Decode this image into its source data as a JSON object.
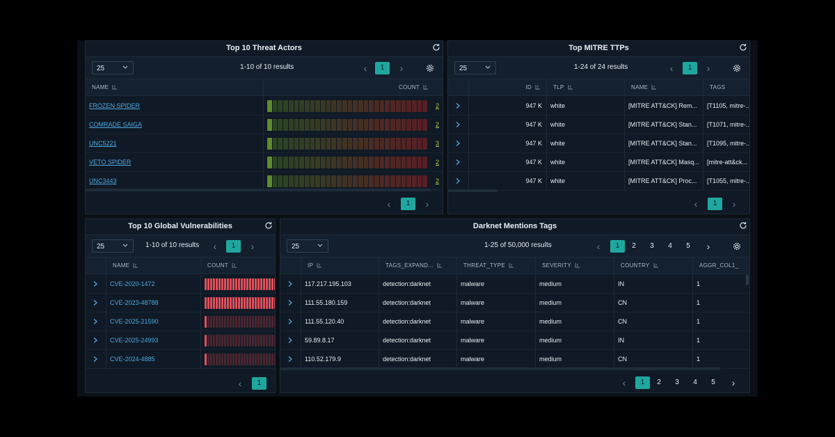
{
  "threat_actors": {
    "title": "Top 10 Threat Actors",
    "page_size": "25",
    "results": "1-10 of 10 results",
    "page": "1",
    "columns": {
      "name": "NAME",
      "count": "COUNT"
    },
    "rows": [
      {
        "name": "FROZEN SPIDER",
        "count": "2"
      },
      {
        "name": "COMRADE SAIGA",
        "count": "2"
      },
      {
        "name": "UNC5221",
        "count": "3"
      },
      {
        "name": "VETO SPIDER",
        "count": "2"
      },
      {
        "name": "UNC3443",
        "count": "2"
      }
    ]
  },
  "mitre": {
    "title": "Top MITRE TTPs",
    "page_size": "25",
    "results": "1-24 of 24 results",
    "page": "1",
    "columns": {
      "id": "ID",
      "tlp": "TLP",
      "name": "NAME",
      "tags": "TAGS"
    },
    "rows": [
      {
        "id": "947 K",
        "tlp": "white",
        "name": "[MITRE ATT&CK] Rem...",
        "tags": "[T1105, mitre-..."
      },
      {
        "id": "947 K",
        "tlp": "white",
        "name": "[MITRE ATT&CK] Stan...",
        "tags": "[T1071, mitre-..."
      },
      {
        "id": "947 K",
        "tlp": "white",
        "name": "[MITRE ATT&CK] Stan...",
        "tags": "[T1095, mitre-..."
      },
      {
        "id": "947 K",
        "tlp": "white",
        "name": "[MITRE ATT&CK] Masq...",
        "tags": "[mitre-att&ck..."
      },
      {
        "id": "947 K",
        "tlp": "white",
        "name": "[MITRE ATT&CK] Proc...",
        "tags": "[T1055, mitre-..."
      }
    ]
  },
  "vulns": {
    "title": "Top 10 Global Vulnerabilities",
    "page_size": "25",
    "results": "1-10 of 10 results",
    "page": "1",
    "columns": {
      "name": "NAME",
      "count": "COUNT"
    },
    "rows": [
      {
        "name": "CVE-2020-1472",
        "fill": 1.0
      },
      {
        "name": "CVE-2023-48788",
        "fill": 1.0
      },
      {
        "name": "CVE-2025-21590",
        "fill": 0.05
      },
      {
        "name": "CVE-2025-24993",
        "fill": 0.05
      },
      {
        "name": "CVE-2024-4885",
        "fill": 0.05
      }
    ]
  },
  "darknet": {
    "title": "Darknet Mentions Tags",
    "page_size": "25",
    "results": "1-25 of 50,000 results",
    "pages": [
      "1",
      "2",
      "3",
      "4",
      "5"
    ],
    "columns": {
      "ip": "IP",
      "tags": "TAGS_EXPAND...",
      "threat_type": "THREAT_TYPE",
      "severity": "SEVERITY",
      "country": "COUNTRY",
      "aggr": "AGGR_COL1_"
    },
    "rows": [
      {
        "ip": "117.217.195.103",
        "tags": "detection:darknet",
        "threat_type": "malware",
        "severity": "medium",
        "country": "IN",
        "aggr": "1"
      },
      {
        "ip": "111.55.180.159",
        "tags": "detection:darknet",
        "threat_type": "malware",
        "severity": "medium",
        "country": "CN",
        "aggr": "1"
      },
      {
        "ip": "111.55.120.40",
        "tags": "detection:darknet",
        "threat_type": "malware",
        "severity": "medium",
        "country": "CN",
        "aggr": "1"
      },
      {
        "ip": "59.89.8.17",
        "tags": "detection:darknet",
        "threat_type": "malware",
        "severity": "medium",
        "country": "IN",
        "aggr": "1"
      },
      {
        "ip": "110.52.179.9",
        "tags": "detection:darknet",
        "threat_type": "malware",
        "severity": "medium",
        "country": "CN",
        "aggr": "1"
      }
    ]
  },
  "colors": {
    "accent": "#1fa79f",
    "link": "#4ea8e0",
    "bar_red": "#e0505a",
    "bar_red_dim": "#4a2630"
  }
}
